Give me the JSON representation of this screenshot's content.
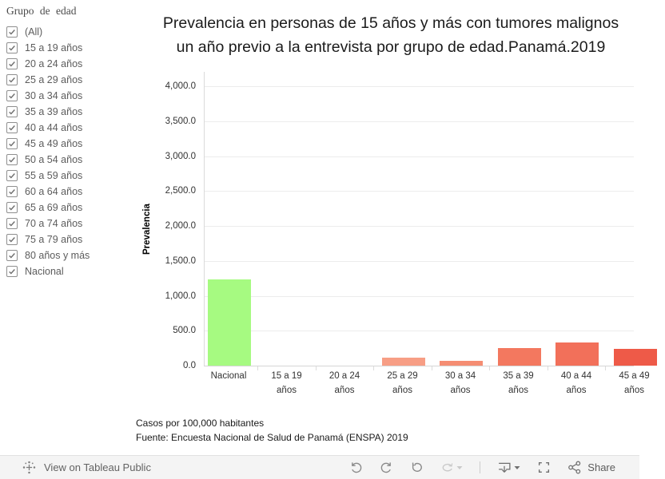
{
  "sidebar": {
    "title": "Grupo de edad",
    "items": [
      {
        "label": "(All)",
        "checked": true
      },
      {
        "label": "15 a 19 años",
        "checked": true
      },
      {
        "label": "20 a 24 años",
        "checked": true
      },
      {
        "label": "25 a 29 años",
        "checked": true
      },
      {
        "label": "30 a 34 años",
        "checked": true
      },
      {
        "label": "35 a 39 años",
        "checked": true
      },
      {
        "label": "40 a 44 años",
        "checked": true
      },
      {
        "label": "45 a 49 años",
        "checked": true
      },
      {
        "label": "50 a 54 años",
        "checked": true
      },
      {
        "label": "55 a 59 años",
        "checked": true
      },
      {
        "label": "60 a 64 años",
        "checked": true
      },
      {
        "label": "65 a 69 años",
        "checked": true
      },
      {
        "label": "70 a 74 años",
        "checked": true
      },
      {
        "label": "75 a 79 años",
        "checked": true
      },
      {
        "label": "80 años y más",
        "checked": true
      },
      {
        "label": "Nacional",
        "checked": true
      }
    ]
  },
  "chart_data": {
    "type": "bar",
    "title": "Prevalencia en personas de 15 años y más con tumores malignos un año previo a la entrevista por grupo de edad.Panamá.2019",
    "title_lines": [
      "Prevalencia en personas de 15 años y más con tumores malignos",
      "un año previo a la entrevista por grupo de edad.Panamá.2019"
    ],
    "ylabel": "Prevalencia",
    "xlabel": "",
    "ylim": [
      0,
      4000
    ],
    "ytick_step": 500,
    "grid": true,
    "legend": "none",
    "categories": [
      "Nacional",
      "15 a 19 años",
      "20 a 24 años",
      "25 a 29 años",
      "30 a 34 años",
      "35 a 39 años",
      "40 a 44 años",
      "45 a 49 años"
    ],
    "values": [
      1240,
      0,
      0,
      120,
      70,
      250,
      335,
      245
    ],
    "bar_colors": [
      "#a6fa81",
      "#fbc4b1",
      "#fab09a",
      "#f79e85",
      "#f58d73",
      "#f3785f",
      "#f2705a",
      "#ee5a48"
    ],
    "note": "rightmost category (45 a 49 años) clipped by viewport edge"
  },
  "caption": {
    "line1": "Casos por 100,000 habitantes",
    "line2": "Fuente: Encuesta Nacional de Salud de Panamá (ENSPA) 2019"
  },
  "toolbar": {
    "view_label": "View on Tableau Public",
    "share_label": "Share",
    "buttons": [
      "undo",
      "redo",
      "replay",
      "refresh",
      "download",
      "fullscreen",
      "share"
    ]
  },
  "colors": {
    "national_bar": "#a6fa81",
    "max_red": "#ee5a48",
    "toolbar_bg": "#f4f4f4",
    "grid_line": "#ececec",
    "text_gray": "#5c5c5c"
  }
}
